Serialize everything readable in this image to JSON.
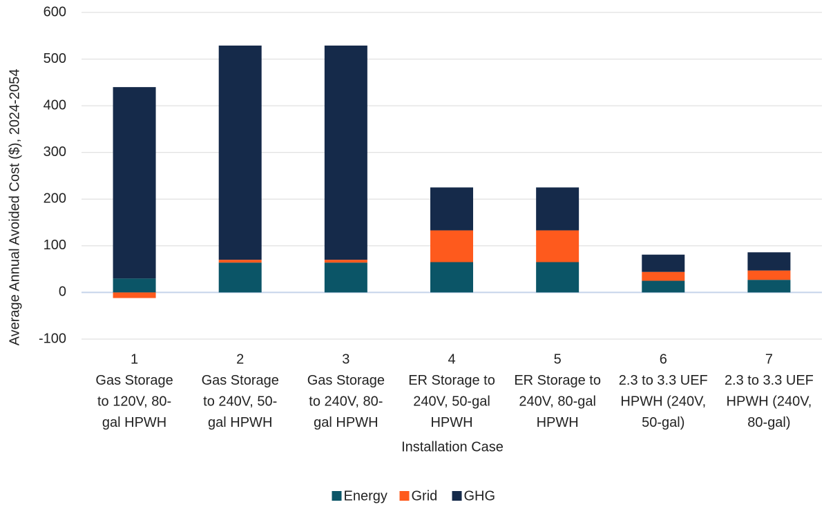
{
  "chart_data": {
    "type": "stacked_bar",
    "y_label": "Average Annual Avoided Cost ($), 2024-2054",
    "x_label": "Installation Case",
    "categories": [
      [
        "1",
        "Gas Storage",
        "to 120V, 80-",
        "gal HPWH"
      ],
      [
        "2",
        "Gas Storage",
        "to 240V, 50-",
        "gal HPWH"
      ],
      [
        "3",
        "Gas Storage",
        "to 240V, 80-",
        "gal HPWH"
      ],
      [
        "4",
        "ER Storage to",
        "240V, 50-gal",
        "HPWH"
      ],
      [
        "5",
        "ER Storage to",
        "240V, 80-gal",
        "HPWH"
      ],
      [
        "6",
        "2.3 to 3.3 UEF",
        "HPWH (240V,",
        "50-gal)"
      ],
      [
        "7",
        "2.3 to 3.3 UEF",
        "HPWH (240V,",
        "80-gal)"
      ]
    ],
    "series": [
      {
        "name": "Energy",
        "color": "#0b5567",
        "values": [
          30,
          64,
          64,
          65,
          65,
          25,
          27
        ]
      },
      {
        "name": "Grid",
        "color": "#fe5a1d",
        "values": [
          -12,
          6,
          6,
          68,
          68,
          19,
          20
        ]
      },
      {
        "name": "GHG",
        "color": "#152a4a",
        "values": [
          410,
          459,
          459,
          92,
          92,
          37,
          39
        ]
      }
    ],
    "ylim": [
      -100,
      600
    ],
    "yticks": [
      -100,
      0,
      100,
      200,
      300,
      400,
      500,
      600
    ],
    "grid": true,
    "legend": "bottom"
  }
}
